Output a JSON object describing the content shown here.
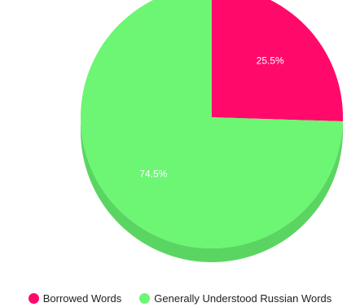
{
  "chart_data": {
    "type": "pie",
    "title": "",
    "slices": [
      {
        "label": "Borrowed Words",
        "value": 25.5,
        "value_label": "25.5%",
        "color": "#ff0a6b",
        "side_color": "#d9085b"
      },
      {
        "label": "Generally Understood Russian Words",
        "value": 74.5,
        "value_label": "74.5%",
        "color": "#6cf674",
        "side_color": "#5bd562"
      }
    ],
    "legend_position": "bottom-center",
    "start_angle": "12 o'clock, clockwise",
    "three_d": true
  }
}
